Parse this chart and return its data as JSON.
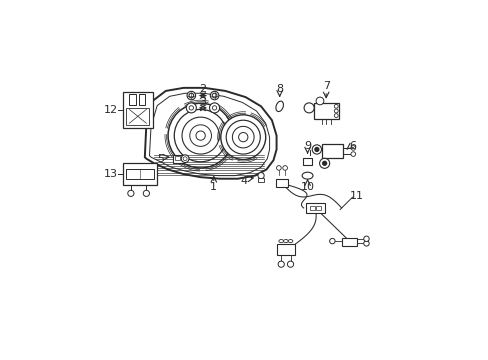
{
  "background_color": "#ffffff",
  "line_color": "#2a2a2a",
  "fig_width": 4.89,
  "fig_height": 3.6,
  "dpi": 100,
  "lamp_outer_x": [
    1.08,
    1.1,
    1.18,
    1.35,
    1.58,
    1.85,
    2.12,
    2.38,
    2.58,
    2.72,
    2.78,
    2.78,
    2.74,
    2.65,
    2.5,
    2.28,
    2.05,
    1.8,
    1.58,
    1.38,
    1.2,
    1.1,
    1.08
  ],
  "lamp_outer_y": [
    2.12,
    2.55,
    2.85,
    2.98,
    3.02,
    3.02,
    2.98,
    2.9,
    2.78,
    2.6,
    2.4,
    2.22,
    2.08,
    1.96,
    1.88,
    1.84,
    1.84,
    1.86,
    1.9,
    1.96,
    2.04,
    2.1,
    2.12
  ],
  "lamp_inner_x": [
    1.14,
    1.16,
    1.24,
    1.4,
    1.6,
    1.84,
    2.1,
    2.34,
    2.52,
    2.64,
    2.69,
    2.69,
    2.66,
    2.58,
    2.44,
    2.24,
    2.03,
    1.8,
    1.6,
    1.42,
    1.26,
    1.16,
    1.14
  ],
  "lamp_inner_y": [
    2.14,
    2.52,
    2.79,
    2.91,
    2.95,
    2.95,
    2.91,
    2.83,
    2.72,
    2.56,
    2.38,
    2.22,
    2.1,
    1.99,
    1.92,
    1.88,
    1.88,
    1.9,
    1.94,
    1.99,
    2.07,
    2.12,
    2.14
  ]
}
